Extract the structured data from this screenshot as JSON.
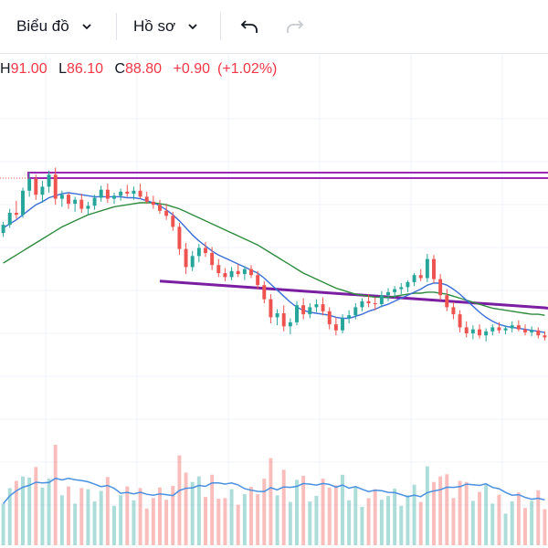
{
  "toolbar": {
    "chart_menu_label": "Biểu đồ",
    "profile_menu_label": "Hồ sơ",
    "undo_icon": "undo-arrow-icon",
    "redo_icon": "redo-arrow-icon",
    "chevron_icon": "chevron-down-icon"
  },
  "legend": {
    "high_label": "H",
    "high_value": "91.00",
    "low_label": "L",
    "low_value": "86.10",
    "close_label": "C",
    "close_value": "88.80",
    "change": "+0.90",
    "change_pct": "(+1.02%)"
  },
  "colors": {
    "up": "#26a69a",
    "down": "#ef5350",
    "ma_fast": "#3a6fd8",
    "ma_mid": "#2e8b3e",
    "ma_slow": "#7b1fa2",
    "zone": "#9c27b0",
    "legend_value": "#f23645",
    "grid": "#f0f3fa",
    "volume_avg": "#4a90e2"
  },
  "chart_data": {
    "type": "candlestick",
    "price_range": [
      70,
      100
    ],
    "candles": [
      [
        85.0,
        86.1,
        84.6,
        85.8
      ],
      [
        85.8,
        87.4,
        85.5,
        87.0
      ],
      [
        87.0,
        88.2,
        86.4,
        86.8
      ],
      [
        86.8,
        89.5,
        86.5,
        89.2
      ],
      [
        89.2,
        91.0,
        88.6,
        90.4
      ],
      [
        90.4,
        90.8,
        88.3,
        88.8
      ],
      [
        88.8,
        90.2,
        88.0,
        89.6
      ],
      [
        89.6,
        91.2,
        89.0,
        90.8
      ],
      [
        90.8,
        91.5,
        87.8,
        88.4
      ],
      [
        88.4,
        89.2,
        87.6,
        88.8
      ],
      [
        88.8,
        89.0,
        87.4,
        87.9
      ],
      [
        87.9,
        88.6,
        87.1,
        88.3
      ],
      [
        88.3,
        88.9,
        87.0,
        87.4
      ],
      [
        87.4,
        88.1,
        86.8,
        87.7
      ],
      [
        87.7,
        88.8,
        87.3,
        88.5
      ],
      [
        88.5,
        89.7,
        88.1,
        89.3
      ],
      [
        89.3,
        89.9,
        88.0,
        88.4
      ],
      [
        88.4,
        89.0,
        87.9,
        88.7
      ],
      [
        88.7,
        89.4,
        88.2,
        89.1
      ],
      [
        89.1,
        89.8,
        88.6,
        88.9
      ],
      [
        88.9,
        89.6,
        88.3,
        89.2
      ],
      [
        89.2,
        89.9,
        88.4,
        88.6
      ],
      [
        88.6,
        89.1,
        87.9,
        88.1
      ],
      [
        88.1,
        88.7,
        87.4,
        87.8
      ],
      [
        87.8,
        88.3,
        86.9,
        87.2
      ],
      [
        87.2,
        87.9,
        86.3,
        86.7
      ],
      [
        86.7,
        87.1,
        85.2,
        85.6
      ],
      [
        85.6,
        86.0,
        82.8,
        83.4
      ],
      [
        83.4,
        84.0,
        80.9,
        81.6
      ],
      [
        81.6,
        83.2,
        81.2,
        82.7
      ],
      [
        82.7,
        83.9,
        82.1,
        83.5
      ],
      [
        83.5,
        84.1,
        82.6,
        83.0
      ],
      [
        83.0,
        83.6,
        81.3,
        81.8
      ],
      [
        81.8,
        82.4,
        80.6,
        81.0
      ],
      [
        81.0,
        81.5,
        80.2,
        80.6
      ],
      [
        80.6,
        81.6,
        80.3,
        81.2
      ],
      [
        81.2,
        81.9,
        80.6,
        80.9
      ],
      [
        80.9,
        81.7,
        80.3,
        81.4
      ],
      [
        81.4,
        81.8,
        80.5,
        80.8
      ],
      [
        80.8,
        81.2,
        79.4,
        79.8
      ],
      [
        79.8,
        80.2,
        78.0,
        78.4
      ],
      [
        78.4,
        78.9,
        76.0,
        76.6
      ],
      [
        76.6,
        77.4,
        75.8,
        77.0
      ],
      [
        77.0,
        77.8,
        75.2,
        75.7
      ],
      [
        75.7,
        76.5,
        74.9,
        76.1
      ],
      [
        76.1,
        78.2,
        75.8,
        77.8
      ],
      [
        77.8,
        78.5,
        76.4,
        76.9
      ],
      [
        76.9,
        78.0,
        76.5,
        77.6
      ],
      [
        77.6,
        78.4,
        77.1,
        77.9
      ],
      [
        77.9,
        78.6,
        76.8,
        77.2
      ],
      [
        77.2,
        77.6,
        75.4,
        75.9
      ],
      [
        75.9,
        76.6,
        74.8,
        75.3
      ],
      [
        75.3,
        76.9,
        75.0,
        76.5
      ],
      [
        76.5,
        77.3,
        76.0,
        76.8
      ],
      [
        76.8,
        78.0,
        76.4,
        77.6
      ],
      [
        77.6,
        78.5,
        77.2,
        78.2
      ],
      [
        78.2,
        78.9,
        77.6,
        78.0
      ],
      [
        78.0,
        78.6,
        77.3,
        77.9
      ],
      [
        77.9,
        79.2,
        77.6,
        78.8
      ],
      [
        78.8,
        79.5,
        78.2,
        79.1
      ],
      [
        79.1,
        79.7,
        78.5,
        79.4
      ],
      [
        79.4,
        80.0,
        78.9,
        79.6
      ],
      [
        79.6,
        80.3,
        79.1,
        80.1
      ],
      [
        80.1,
        81.0,
        79.7,
        80.8
      ],
      [
        80.8,
        81.4,
        80.2,
        80.5
      ],
      [
        80.5,
        82.9,
        80.1,
        82.4
      ],
      [
        82.4,
        82.8,
        80.0,
        80.4
      ],
      [
        80.4,
        80.9,
        78.3,
        78.8
      ],
      [
        78.8,
        79.4,
        77.2,
        77.6
      ],
      [
        77.6,
        78.1,
        76.4,
        76.9
      ],
      [
        76.9,
        77.3,
        75.1,
        75.6
      ],
      [
        75.6,
        76.2,
        74.6,
        75.0
      ],
      [
        75.0,
        75.8,
        74.4,
        75.4
      ],
      [
        75.4,
        75.9,
        74.5,
        74.8
      ],
      [
        74.8,
        75.5,
        74.2,
        75.2
      ],
      [
        75.2,
        75.9,
        74.8,
        75.6
      ],
      [
        75.6,
        76.1,
        75.0,
        75.3
      ],
      [
        75.3,
        75.8,
        74.9,
        75.5
      ],
      [
        75.5,
        76.2,
        75.1,
        75.8
      ],
      [
        75.8,
        76.3,
        75.2,
        75.4
      ],
      [
        75.4,
        75.9,
        74.8,
        75.1
      ],
      [
        75.1,
        75.7,
        74.7,
        75.3
      ],
      [
        75.3,
        75.6,
        74.5,
        74.8
      ],
      [
        74.8,
        75.2,
        74.3,
        74.6
      ]
    ],
    "ma_fast": [
      85.5,
      85.9,
      86.3,
      86.8,
      87.3,
      87.8,
      88.1,
      88.5,
      88.7,
      88.9,
      89.0,
      88.9,
      88.8,
      88.7,
      88.6,
      88.6,
      88.6,
      88.6,
      88.6,
      88.5,
      88.5,
      88.4,
      88.2,
      88.0,
      87.7,
      87.3,
      86.8,
      86.2,
      85.5,
      84.8,
      84.2,
      83.7,
      83.2,
      82.8,
      82.5,
      82.2,
      81.9,
      81.6,
      81.3,
      81.0,
      80.5,
      79.9,
      79.3,
      78.7,
      78.1,
      77.6,
      77.3,
      77.1,
      77.0,
      76.9,
      76.8,
      76.6,
      76.5,
      76.5,
      76.7,
      76.9,
      77.2,
      77.4,
      77.7,
      77.9,
      78.2,
      78.5,
      78.8,
      79.1,
      79.4,
      79.8,
      80.0,
      80.0,
      79.8,
      79.4,
      78.9,
      78.3,
      77.7,
      77.1,
      76.6,
      76.2,
      75.9,
      75.7,
      75.6,
      75.5,
      75.4,
      75.3,
      75.2,
      75.1
    ],
    "ma_mid": [
      82.0,
      82.4,
      82.8,
      83.2,
      83.6,
      84.0,
      84.4,
      84.8,
      85.2,
      85.6,
      85.9,
      86.2,
      86.5,
      86.8,
      87.0,
      87.2,
      87.4,
      87.6,
      87.7,
      87.8,
      87.9,
      88.0,
      88.0,
      88.0,
      87.9,
      87.8,
      87.6,
      87.4,
      87.1,
      86.8,
      86.5,
      86.2,
      85.9,
      85.6,
      85.3,
      85.0,
      84.7,
      84.4,
      84.1,
      83.8,
      83.4,
      83.0,
      82.6,
      82.2,
      81.8,
      81.4,
      81.0,
      80.7,
      80.4,
      80.1,
      79.8,
      79.5,
      79.3,
      79.1,
      78.9,
      78.8,
      78.7,
      78.6,
      78.6,
      78.6,
      78.7,
      78.8,
      78.9,
      79.0,
      79.0,
      79.1,
      79.1,
      79.0,
      78.9,
      78.7,
      78.5,
      78.3,
      78.1,
      77.9,
      77.7,
      77.5,
      77.4,
      77.3,
      77.2,
      77.1,
      77.0,
      76.9,
      76.9,
      76.8
    ]
  }
}
